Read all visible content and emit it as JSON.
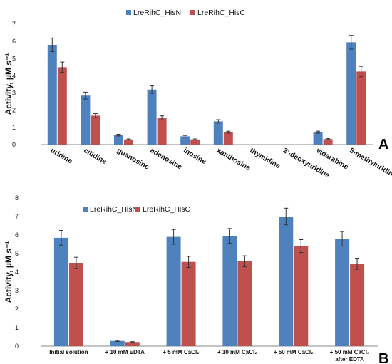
{
  "colors": {
    "series1": "#4f81bd",
    "series2": "#c0504d"
  },
  "chart_data": [
    {
      "type": "bar",
      "panel_label": "A",
      "ylabel": "Activity, μM s⁻¹",
      "ylim": [
        0,
        7
      ],
      "yticks": [
        "0",
        "1",
        "2",
        "3",
        "4",
        "5",
        "6",
        "7"
      ],
      "legend_position": "top-center",
      "categories": [
        "uridine",
        "citidine",
        "guanosine",
        "adenosine",
        "inosine",
        "xanthosine",
        "thymidine",
        "2'-deoxyuridine",
        "vidarabine",
        "5-methyluridine"
      ],
      "series": [
        {
          "name": "LreRihC_HisN",
          "values": [
            5.8,
            2.85,
            0.55,
            3.2,
            0.48,
            1.35,
            0.0,
            0.0,
            0.72,
            5.95
          ],
          "errors": [
            0.4,
            0.2,
            0.05,
            0.22,
            0.05,
            0.1,
            0.0,
            0.0,
            0.06,
            0.4
          ]
        },
        {
          "name": "LreRihC_HisC",
          "values": [
            4.5,
            1.68,
            0.3,
            1.55,
            0.3,
            0.72,
            0.0,
            0.0,
            0.32,
            4.25
          ],
          "errors": [
            0.3,
            0.12,
            0.03,
            0.12,
            0.03,
            0.06,
            0.0,
            0.0,
            0.03,
            0.3
          ]
        }
      ]
    },
    {
      "type": "bar",
      "panel_label": "B",
      "ylabel": "Activity, μM s⁻¹",
      "ylim": [
        0,
        8
      ],
      "yticks": [
        "0",
        "1",
        "2",
        "3",
        "4",
        "5",
        "6",
        "7",
        "8"
      ],
      "legend_position": "top-left",
      "categories": [
        "Initial solution",
        "+ 10 mM EDTA",
        "+ 5 mM CaCl₂",
        "+ 10 mM CaCl₂",
        "+ 50 mM CaCl₂",
        "+ 50 mM CaCl₂ after EDTA"
      ],
      "series": [
        {
          "name": "LreRihC_HisN",
          "values": [
            5.85,
            0.28,
            5.9,
            5.95,
            7.0,
            5.8
          ],
          "errors": [
            0.4,
            0.03,
            0.4,
            0.4,
            0.45,
            0.4
          ]
        },
        {
          "name": "LreRihC_HisC",
          "values": [
            4.5,
            0.22,
            4.55,
            4.58,
            5.4,
            4.45
          ],
          "errors": [
            0.3,
            0.02,
            0.3,
            0.3,
            0.35,
            0.3
          ]
        }
      ]
    }
  ]
}
